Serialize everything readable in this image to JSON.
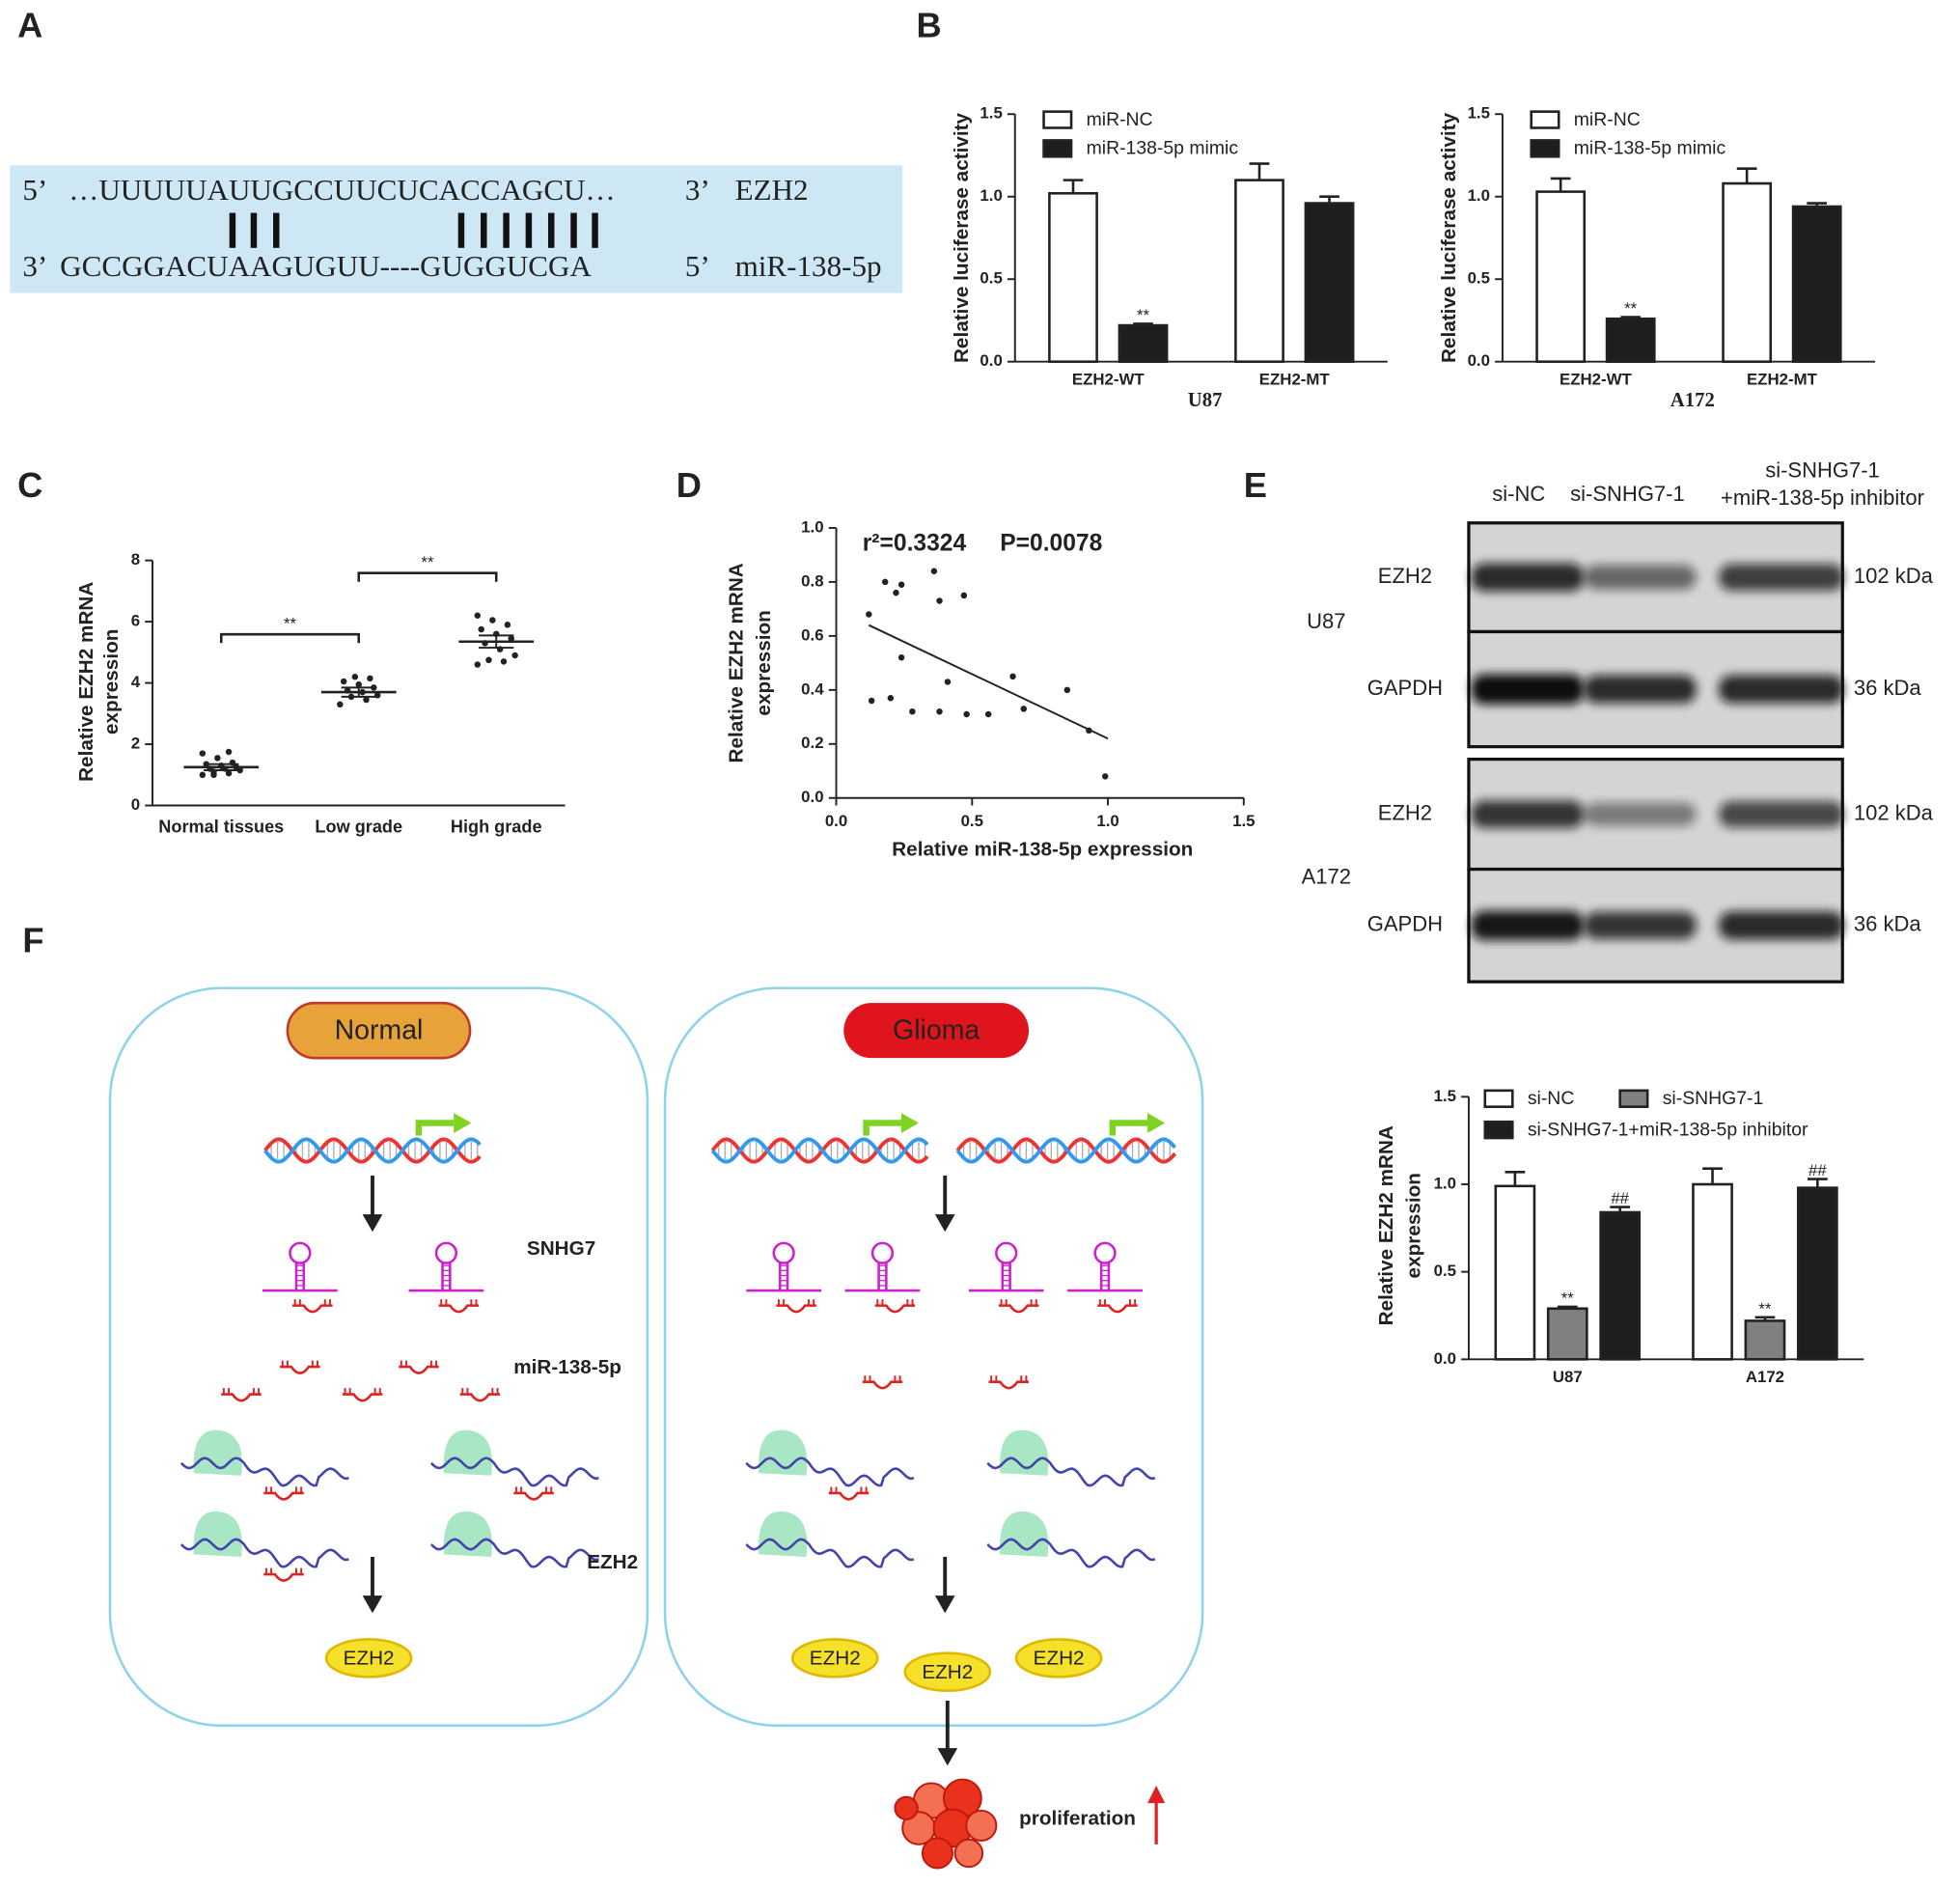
{
  "panel_labels": [
    "A",
    "B",
    "C",
    "D",
    "E",
    "F"
  ],
  "sequence": {
    "top": [
      "5’",
      "…UUUUUAUUGCCUUCUCACCAGCU…",
      "3’",
      "EZH2"
    ],
    "bottom": [
      "3’",
      "GCCGGACUAAGUGUU----GUGGUCGA",
      "5’",
      "miR-138-5p"
    ]
  },
  "chart_data": [
    {
      "type": "bar",
      "ylabel": [
        "Relative luciferase activity"
      ],
      "xlabel": "U87",
      "categories": [
        "EZH2-WT",
        "EZH2-MT"
      ],
      "series": [
        {
          "name": "miR-NC",
          "color": "#ffffff",
          "values": [
            1.02,
            1.1
          ],
          "errors": [
            0.08,
            0.1
          ],
          "significance": [
            null,
            null
          ]
        },
        {
          "name": "miR-138-5p mimic",
          "color": "#1e1e1e",
          "values": [
            0.22,
            0.96
          ],
          "errors": [
            0.01,
            0.04
          ],
          "significance": [
            "**",
            null
          ]
        }
      ],
      "ylim": [
        0,
        1.5
      ],
      "yticks": [
        {
          "value": 0,
          "label": "0.0"
        },
        {
          "value": 0.5,
          "label": "0.5"
        },
        {
          "value": 1,
          "label": "1.0"
        },
        {
          "value": 1.5,
          "label": "1.5"
        }
      ]
    },
    {
      "type": "bar",
      "ylabel": [
        "Relative luciferase activity"
      ],
      "xlabel": "A172",
      "categories": [
        "EZH2-WT",
        "EZH2-MT"
      ],
      "series": [
        {
          "name": "miR-NC",
          "color": "#ffffff",
          "values": [
            1.03,
            1.08
          ],
          "errors": [
            0.08,
            0.09
          ],
          "significance": [
            null,
            null
          ]
        },
        {
          "name": "miR-138-5p mimic",
          "color": "#1e1e1e",
          "values": [
            0.26,
            0.94
          ],
          "errors": [
            0.01,
            0.02
          ],
          "significance": [
            "**",
            null
          ]
        }
      ],
      "ylim": [
        0,
        1.5
      ],
      "yticks": [
        {
          "value": 0,
          "label": "0.0"
        },
        {
          "value": 0.5,
          "label": "0.5"
        },
        {
          "value": 1,
          "label": "1.0"
        },
        {
          "value": 1.5,
          "label": "1.5"
        }
      ]
    },
    {
      "type": "dot",
      "ylabel": [
        "Relative EZH2 mRNA",
        "expression"
      ],
      "categories": [
        "Normal tissues",
        "Low grade",
        "High grade"
      ],
      "groups": [
        {
          "values": [
            1.0,
            1.05,
            1.1,
            1.15,
            1.2,
            1.2,
            1.25,
            1.3,
            1.35,
            1.4,
            1.55,
            1.7,
            1.75,
            1.0
          ],
          "mean": 1.25,
          "sem": 0.1
        },
        {
          "values": [
            3.3,
            3.45,
            3.55,
            3.6,
            3.7,
            3.75,
            3.85,
            3.95,
            4.05,
            4.15,
            4.2
          ],
          "mean": 3.7,
          "sem": 0.15
        },
        {
          "values": [
            4.6,
            4.7,
            4.75,
            4.9,
            5.1,
            5.3,
            5.45,
            5.6,
            5.75,
            5.9,
            6.05,
            6.2
          ],
          "mean": 5.35,
          "sem": 0.2
        }
      ],
      "significance": [
        "**",
        "**"
      ],
      "color": "#222222",
      "ylim": [
        0,
        8
      ],
      "yticks": [
        0,
        2,
        4,
        6,
        8
      ]
    },
    {
      "type": "scatter",
      "annotations": [
        "r²=0.3324",
        "P=0.0078"
      ],
      "xlabel": "Relative miR-138-5p expression",
      "ylabel": [
        "Relative EZH2 mRNA",
        "expression"
      ],
      "x": [
        0.12,
        0.13,
        0.18,
        0.22,
        0.24,
        0.2,
        0.24,
        0.28,
        0.36,
        0.38,
        0.38,
        0.41,
        0.47,
        0.48,
        0.56,
        0.65,
        0.69,
        0.85,
        0.93,
        0.99
      ],
      "y": [
        0.68,
        0.36,
        0.8,
        0.76,
        0.79,
        0.37,
        0.52,
        0.32,
        0.84,
        0.73,
        0.32,
        0.43,
        0.75,
        0.31,
        0.31,
        0.45,
        0.33,
        0.4,
        0.25,
        0.08
      ],
      "trendline": {
        "x": [
          0.12,
          1.0
        ],
        "y": [
          0.64,
          0.22
        ]
      },
      "color": "#222222",
      "xlim": [
        0,
        1.5
      ],
      "xticks": [
        {
          "value": 0,
          "label": "0.0"
        },
        {
          "value": 0.5,
          "label": "0.5"
        },
        {
          "value": 1,
          "label": "1.0"
        },
        {
          "value": 1.5,
          "label": "1.5"
        }
      ],
      "ylim": [
        0,
        1
      ],
      "yticks": [
        {
          "value": 0,
          "label": "0.0"
        },
        {
          "value": 0.2,
          "label": "0.2"
        },
        {
          "value": 0.4,
          "label": "0.4"
        },
        {
          "value": 0.6,
          "label": "0.6"
        },
        {
          "value": 0.8,
          "label": "0.8"
        },
        {
          "value": 1,
          "label": "1.0"
        }
      ]
    },
    {
      "type": "bar",
      "ylabel": [
        "Relative EZH2 mRNA",
        "expression"
      ],
      "categories": [
        "U87",
        "A172"
      ],
      "series": [
        {
          "name": "si-NC",
          "color": "#ffffff",
          "values": [
            0.99,
            1.0
          ],
          "errors": [
            0.08,
            0.09
          ],
          "significance": [
            null,
            null
          ]
        },
        {
          "name": "si-SNHG7-1",
          "color": "#808080",
          "values": [
            0.29,
            0.22
          ],
          "errors": [
            0.01,
            0.02
          ],
          "significance": [
            "**",
            "**"
          ]
        },
        {
          "name": "si-SNHG7-1+miR-138-5p inhibitor",
          "color": "#1e1e1e",
          "values": [
            0.84,
            0.98
          ],
          "errors": [
            0.03,
            0.05
          ],
          "significance": [
            "##",
            "##"
          ]
        }
      ],
      "ylim": [
        0,
        1.5
      ],
      "yticks": [
        {
          "value": 0,
          "label": "0.0"
        },
        {
          "value": 0.5,
          "label": "0.5"
        },
        {
          "value": 1,
          "label": "1.0"
        },
        {
          "value": 1.5,
          "label": "1.5"
        }
      ]
    }
  ],
  "blot": {
    "columns": [
      [
        "si-NC"
      ],
      [
        "si-SNHG7-1"
      ],
      [
        "si-SNHG7-1",
        "+miR-138-5p inhibitor"
      ]
    ],
    "groups": [
      {
        "cell": "U87",
        "rows": [
          {
            "protein": "EZH2",
            "size": "102 kDa"
          },
          {
            "protein": "GAPDH",
            "size": "36 kDa"
          }
        ]
      },
      {
        "cell": "A172",
        "rows": [
          {
            "protein": "EZH2",
            "size": "102 kDa"
          },
          {
            "protein": "GAPDH",
            "size": "36 kDa"
          }
        ]
      }
    ]
  },
  "diagram": {
    "left_title": "Normal",
    "right_title": "Glioma",
    "lncrna": "SNHG7",
    "mirna": "miR-138-5p",
    "mrna": "EZH2",
    "protein": "EZH2",
    "outcome": "proliferation"
  }
}
